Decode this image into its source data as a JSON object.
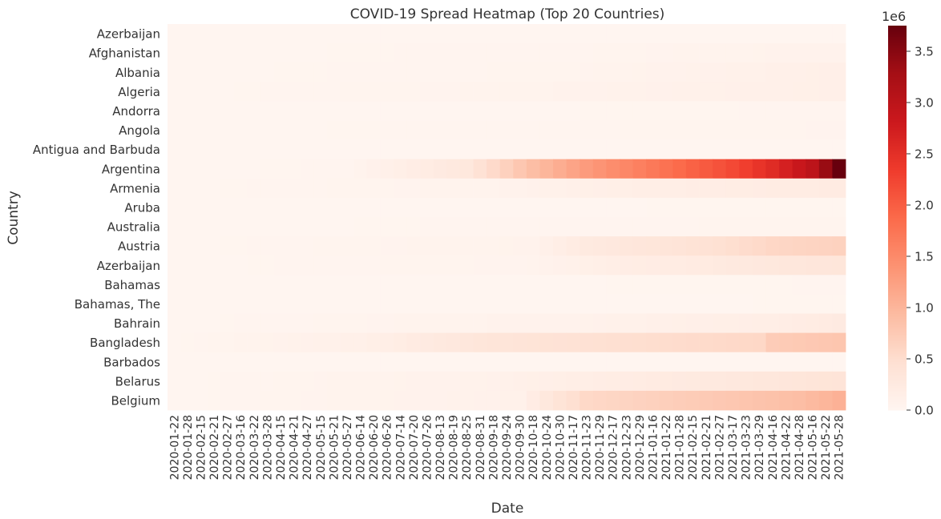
{
  "chart_data": {
    "type": "heatmap",
    "title": "COVID-19 Spread Heatmap (Top 20 Countries)",
    "xlabel": "Date",
    "ylabel": "Country",
    "colormap": "Reds",
    "value_range": [
      0,
      3750000
    ],
    "colorbar": {
      "exponent_label": "1e6",
      "ticks": [
        0.0,
        0.5,
        1.0,
        1.5,
        2.0,
        2.5,
        3.0,
        3.5
      ],
      "tick_labels": [
        "0.0",
        "0.5",
        "1.0",
        "1.5",
        "2.0",
        "2.5",
        "3.0",
        "3.5"
      ]
    },
    "rows": [
      "Azerbaijan",
      "Afghanistan",
      "Albania",
      "Algeria",
      "Andorra",
      "Angola",
      "Antigua and Barbuda",
      "Argentina",
      "Armenia",
      "Aruba",
      "Australia",
      "Austria",
      "Azerbaijan",
      "Bahamas",
      "Bahamas, The",
      "Bahrain",
      "Bangladesh",
      "Barbados",
      "Belarus",
      "Belgium"
    ],
    "columns": [
      "2020-01-22",
      "2020-01-28",
      "2020-02-15",
      "2020-02-21",
      "2020-02-27",
      "2020-03-16",
      "2020-03-22",
      "2020-03-28",
      "2020-04-15",
      "2020-04-21",
      "2020-04-27",
      "2020-05-15",
      "2020-05-21",
      "2020-05-27",
      "2020-06-14",
      "2020-06-20",
      "2020-06-26",
      "2020-07-14",
      "2020-07-20",
      "2020-07-26",
      "2020-08-13",
      "2020-08-19",
      "2020-08-25",
      "2020-08-31",
      "2020-09-18",
      "2020-09-24",
      "2020-09-30",
      "2020-10-18",
      "2020-10-24",
      "2020-10-30",
      "2020-11-17",
      "2020-11-23",
      "2020-11-29",
      "2020-12-17",
      "2020-12-23",
      "2020-12-29",
      "2021-01-16",
      "2021-01-22",
      "2021-01-28",
      "2021-02-15",
      "2021-02-21",
      "2021-02-27",
      "2021-03-17",
      "2021-03-23",
      "2021-03-29",
      "2021-04-16",
      "2021-04-22",
      "2021-04-28",
      "2021-05-16",
      "2021-05-22",
      "2021-05-28"
    ],
    "row_series": [
      {
        "anchors": [
          [
            0,
            0
          ],
          [
            50,
            0
          ]
        ]
      },
      {
        "anchors": [
          [
            0,
            0
          ],
          [
            30,
            20000
          ],
          [
            50,
            70000
          ]
        ]
      },
      {
        "anchors": [
          [
            0,
            0
          ],
          [
            30,
            30000
          ],
          [
            50,
            130000
          ]
        ]
      },
      {
        "anchors": [
          [
            0,
            0
          ],
          [
            27,
            50000
          ],
          [
            50,
            128000
          ]
        ]
      },
      {
        "anchors": [
          [
            0,
            0
          ],
          [
            50,
            13000
          ]
        ]
      },
      {
        "anchors": [
          [
            0,
            0
          ],
          [
            50,
            35000
          ]
        ]
      },
      {
        "anchors": [
          [
            0,
            0
          ],
          [
            50,
            1200
          ]
        ]
      },
      {
        "anchors": [
          [
            0,
            0
          ],
          [
            13,
            15000
          ],
          [
            22,
            300000
          ],
          [
            27,
            900000
          ],
          [
            31,
            1300000
          ],
          [
            36,
            1700000
          ],
          [
            42,
            2200000
          ],
          [
            45,
            2550000
          ],
          [
            48,
            3000000
          ],
          [
            50,
            3750000
          ]
        ]
      },
      {
        "anchors": [
          [
            0,
            0
          ],
          [
            24,
            50000
          ],
          [
            33,
            140000
          ],
          [
            50,
            220000
          ]
        ]
      },
      {
        "anchors": [
          [
            0,
            0
          ],
          [
            50,
            11000
          ]
        ]
      },
      {
        "anchors": [
          [
            0,
            0
          ],
          [
            50,
            30000
          ]
        ]
      },
      {
        "anchors": [
          [
            0,
            0
          ],
          [
            27,
            60000
          ],
          [
            31,
            250000
          ],
          [
            40,
            420000
          ],
          [
            45,
            580000
          ],
          [
            50,
            650000
          ]
        ]
      },
      {
        "anchors": [
          [
            0,
            0
          ],
          [
            27,
            40000
          ],
          [
            33,
            160000
          ],
          [
            40,
            230000
          ],
          [
            45,
            300000
          ],
          [
            50,
            340000
          ]
        ]
      },
      {
        "anchors": [
          [
            0,
            0
          ],
          [
            50,
            12000
          ]
        ]
      },
      {
        "anchors": [
          [
            0,
            0
          ],
          [
            50,
            9000
          ]
        ]
      },
      {
        "anchors": [
          [
            0,
            0
          ],
          [
            30,
            70000
          ],
          [
            45,
            160000
          ],
          [
            50,
            240000
          ]
        ]
      },
      {
        "anchors": [
          [
            0,
            0
          ],
          [
            14,
            110000
          ],
          [
            23,
            340000
          ],
          [
            36,
            500000
          ],
          [
            44,
            570000
          ],
          [
            45,
            720000
          ],
          [
            50,
            800000
          ]
        ]
      },
      {
        "anchors": [
          [
            0,
            0
          ],
          [
            50,
            4000
          ]
        ]
      },
      {
        "anchors": [
          [
            0,
            0
          ],
          [
            23,
            75000
          ],
          [
            40,
            260000
          ],
          [
            50,
            380000
          ]
        ]
      },
      {
        "anchors": [
          [
            0,
            0
          ],
          [
            26,
            90000
          ],
          [
            28,
            300000
          ],
          [
            31,
            560000
          ],
          [
            44,
            830000
          ],
          [
            47,
            900000
          ],
          [
            50,
            1050000
          ]
        ]
      }
    ]
  }
}
